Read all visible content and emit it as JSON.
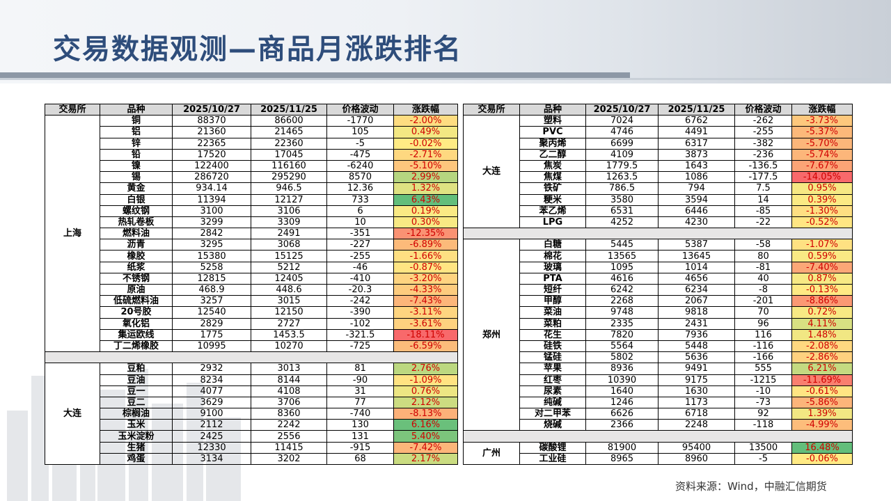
{
  "title": "交易数据观测—商品月涨跌排名",
  "source": "资料来源：Wind，中融汇信期货",
  "headers": [
    "交易所",
    "品种",
    "2025/10/27",
    "2025/11/25",
    "价格波动",
    "涨跌幅"
  ],
  "colors": {
    "title": "#2e4d7b",
    "header_bg": "#d9d9d9",
    "gap_bg": "#e7e6e6",
    "neg_text": "#d00000",
    "scale_red": "#f8696b",
    "scale_yellow": "#ffeb84",
    "scale_green": "#63be7b"
  },
  "left_groups": [
    {
      "exchange": "上海",
      "rows": [
        {
          "name": "铜",
          "p1": "88370",
          "p2": "86600",
          "diff": "-1770",
          "pct": "-2.00%",
          "v": -2.0
        },
        {
          "name": "铝",
          "p1": "21360",
          "p2": "21465",
          "diff": "105",
          "pct": "0.49%",
          "v": 0.49
        },
        {
          "name": "锌",
          "p1": "22365",
          "p2": "22360",
          "diff": "-5",
          "pct": "-0.02%",
          "v": -0.02
        },
        {
          "name": "铅",
          "p1": "17520",
          "p2": "17045",
          "diff": "-475",
          "pct": "-2.71%",
          "v": -2.71
        },
        {
          "name": "镍",
          "p1": "122400",
          "p2": "116160",
          "diff": "-6240",
          "pct": "-5.10%",
          "v": -5.1
        },
        {
          "name": "锡",
          "p1": "286720",
          "p2": "295290",
          "diff": "8570",
          "pct": "2.99%",
          "v": 2.99
        },
        {
          "name": "黄金",
          "p1": "934.14",
          "p2": "946.5",
          "diff": "12.36",
          "pct": "1.32%",
          "v": 1.32
        },
        {
          "name": "白银",
          "p1": "11394",
          "p2": "12127",
          "diff": "733",
          "pct": "6.43%",
          "v": 6.43
        },
        {
          "name": "螺纹钢",
          "p1": "3100",
          "p2": "3106",
          "diff": "6",
          "pct": "0.19%",
          "v": 0.19
        },
        {
          "name": "热轧卷板",
          "p1": "3299",
          "p2": "3309",
          "diff": "10",
          "pct": "0.30%",
          "v": 0.3
        },
        {
          "name": "燃料油",
          "p1": "2842",
          "p2": "2491",
          "diff": "-351",
          "pct": "-12.35%",
          "v": -12.35
        },
        {
          "name": "沥青",
          "p1": "3295",
          "p2": "3068",
          "diff": "-227",
          "pct": "-6.89%",
          "v": -6.89
        },
        {
          "name": "橡胶",
          "p1": "15380",
          "p2": "15125",
          "diff": "-255",
          "pct": "-1.66%",
          "v": -1.66
        },
        {
          "name": "纸浆",
          "p1": "5258",
          "p2": "5212",
          "diff": "-46",
          "pct": "-0.87%",
          "v": -0.87
        },
        {
          "name": "不锈钢",
          "p1": "12815",
          "p2": "12405",
          "diff": "-410",
          "pct": "-3.20%",
          "v": -3.2
        },
        {
          "name": "原油",
          "p1": "468.9",
          "p2": "448.6",
          "diff": "-20.3",
          "pct": "-4.33%",
          "v": -4.33
        },
        {
          "name": "低硫燃料油",
          "p1": "3257",
          "p2": "3015",
          "diff": "-242",
          "pct": "-7.43%",
          "v": -7.43
        },
        {
          "name": "20号胶",
          "p1": "12540",
          "p2": "12150",
          "diff": "-390",
          "pct": "-3.11%",
          "v": -3.11
        },
        {
          "name": "氧化铝",
          "p1": "2829",
          "p2": "2727",
          "diff": "-102",
          "pct": "-3.61%",
          "v": -3.61
        },
        {
          "name": "集运欧线",
          "p1": "1775",
          "p2": "1453.5",
          "diff": "-321.5",
          "pct": "-18.11%",
          "v": -18.11
        },
        {
          "name": "丁二烯橡胶",
          "p1": "10995",
          "p2": "10270",
          "diff": "-725",
          "pct": "-6.59%",
          "v": -6.59
        }
      ]
    },
    {
      "exchange": "大连",
      "rows": [
        {
          "name": "豆粕",
          "p1": "2932",
          "p2": "3013",
          "diff": "81",
          "pct": "2.76%",
          "v": 2.76
        },
        {
          "name": "豆油",
          "p1": "8234",
          "p2": "8144",
          "diff": "-90",
          "pct": "-1.09%",
          "v": -1.09
        },
        {
          "name": "豆一",
          "p1": "4077",
          "p2": "4108",
          "diff": "31",
          "pct": "0.76%",
          "v": 0.76
        },
        {
          "name": "豆二",
          "p1": "3629",
          "p2": "3706",
          "diff": "77",
          "pct": "2.12%",
          "v": 2.12
        },
        {
          "name": "棕榈油",
          "p1": "9100",
          "p2": "8360",
          "diff": "-740",
          "pct": "-8.13%",
          "v": -8.13
        },
        {
          "name": "玉米",
          "p1": "2112",
          "p2": "2242",
          "diff": "130",
          "pct": "6.16%",
          "v": 6.16
        },
        {
          "name": "玉米淀粉",
          "p1": "2425",
          "p2": "2556",
          "diff": "131",
          "pct": "5.40%",
          "v": 5.4
        },
        {
          "name": "生猪",
          "p1": "12330",
          "p2": "11415",
          "diff": "-915",
          "pct": "-7.42%",
          "v": -7.42
        },
        {
          "name": "鸡蛋",
          "p1": "3134",
          "p2": "3202",
          "diff": "68",
          "pct": "2.17%",
          "v": 2.17
        }
      ]
    }
  ],
  "right_groups": [
    {
      "exchange": "大连",
      "rows": [
        {
          "name": "塑料",
          "p1": "7024",
          "p2": "6762",
          "diff": "-262",
          "pct": "-3.73%",
          "v": -3.73
        },
        {
          "name": "PVC",
          "p1": "4746",
          "p2": "4491",
          "diff": "-255",
          "pct": "-5.37%",
          "v": -5.37
        },
        {
          "name": "聚丙烯",
          "p1": "6699",
          "p2": "6317",
          "diff": "-382",
          "pct": "-5.70%",
          "v": -5.7
        },
        {
          "name": "乙二醇",
          "p1": "4109",
          "p2": "3873",
          "diff": "-236",
          "pct": "-5.74%",
          "v": -5.74
        },
        {
          "name": "焦炭",
          "p1": "1779.5",
          "p2": "1643",
          "diff": "-136.5",
          "pct": "-7.67%",
          "v": -7.67
        },
        {
          "name": "焦煤",
          "p1": "1263.5",
          "p2": "1086",
          "diff": "-177.5",
          "pct": "-14.05%",
          "v": -14.05
        },
        {
          "name": "铁矿",
          "p1": "786.5",
          "p2": "794",
          "diff": "7.5",
          "pct": "0.95%",
          "v": 0.95
        },
        {
          "name": "粳米",
          "p1": "3580",
          "p2": "3594",
          "diff": "14",
          "pct": "0.39%",
          "v": 0.39
        },
        {
          "name": "苯乙烯",
          "p1": "6531",
          "p2": "6446",
          "diff": "-85",
          "pct": "-1.30%",
          "v": -1.3
        },
        {
          "name": "LPG",
          "p1": "4252",
          "p2": "4230",
          "diff": "-22",
          "pct": "-0.52%",
          "v": -0.52
        }
      ]
    },
    {
      "exchange": "郑州",
      "rows": [
        {
          "name": "白糖",
          "p1": "5445",
          "p2": "5387",
          "diff": "-58",
          "pct": "-1.07%",
          "v": -1.07
        },
        {
          "name": "棉花",
          "p1": "13565",
          "p2": "13645",
          "diff": "80",
          "pct": "0.59%",
          "v": 0.59
        },
        {
          "name": "玻璃",
          "p1": "1095",
          "p2": "1014",
          "diff": "-81",
          "pct": "-7.40%",
          "v": -7.4
        },
        {
          "name": "PTA",
          "p1": "4616",
          "p2": "4656",
          "diff": "40",
          "pct": "0.87%",
          "v": 0.87
        },
        {
          "name": "短纤",
          "p1": "6242",
          "p2": "6234",
          "diff": "-8",
          "pct": "-0.13%",
          "v": -0.13
        },
        {
          "name": "甲醇",
          "p1": "2268",
          "p2": "2067",
          "diff": "-201",
          "pct": "-8.86%",
          "v": -8.86
        },
        {
          "name": "菜油",
          "p1": "9748",
          "p2": "9818",
          "diff": "70",
          "pct": "0.72%",
          "v": 0.72
        },
        {
          "name": "菜粕",
          "p1": "2335",
          "p2": "2431",
          "diff": "96",
          "pct": "4.11%",
          "v": 4.11
        },
        {
          "name": "花生",
          "p1": "7820",
          "p2": "7936",
          "diff": "116",
          "pct": "1.48%",
          "v": 1.48
        },
        {
          "name": "硅铁",
          "p1": "5564",
          "p2": "5448",
          "diff": "-116",
          "pct": "-2.08%",
          "v": -2.08
        },
        {
          "name": "锰硅",
          "p1": "5802",
          "p2": "5636",
          "diff": "-166",
          "pct": "-2.86%",
          "v": -2.86
        },
        {
          "name": "苹果",
          "p1": "8936",
          "p2": "9491",
          "diff": "555",
          "pct": "6.21%",
          "v": 6.21
        },
        {
          "name": "红枣",
          "p1": "10390",
          "p2": "9175",
          "diff": "-1215",
          "pct": "-11.69%",
          "v": -11.69
        },
        {
          "name": "尿素",
          "p1": "1640",
          "p2": "1630",
          "diff": "-10",
          "pct": "-0.61%",
          "v": -0.61
        },
        {
          "name": "纯碱",
          "p1": "1246",
          "p2": "1173",
          "diff": "-73",
          "pct": "-5.86%",
          "v": -5.86
        },
        {
          "name": "对二甲苯",
          "p1": "6626",
          "p2": "6718",
          "diff": "92",
          "pct": "1.39%",
          "v": 1.39
        },
        {
          "name": "烧碱",
          "p1": "2366",
          "p2": "2248",
          "diff": "-118",
          "pct": "-4.99%",
          "v": -4.99
        }
      ]
    },
    {
      "exchange": "广州",
      "rows": [
        {
          "name": "碳酸锂",
          "p1": "81900",
          "p2": "95400",
          "diff": "13500",
          "pct": "16.48%",
          "v": 16.48
        },
        {
          "name": "工业硅",
          "p1": "8965",
          "p2": "8960",
          "diff": "-5",
          "pct": "-0.06%",
          "v": -0.06
        }
      ]
    }
  ]
}
